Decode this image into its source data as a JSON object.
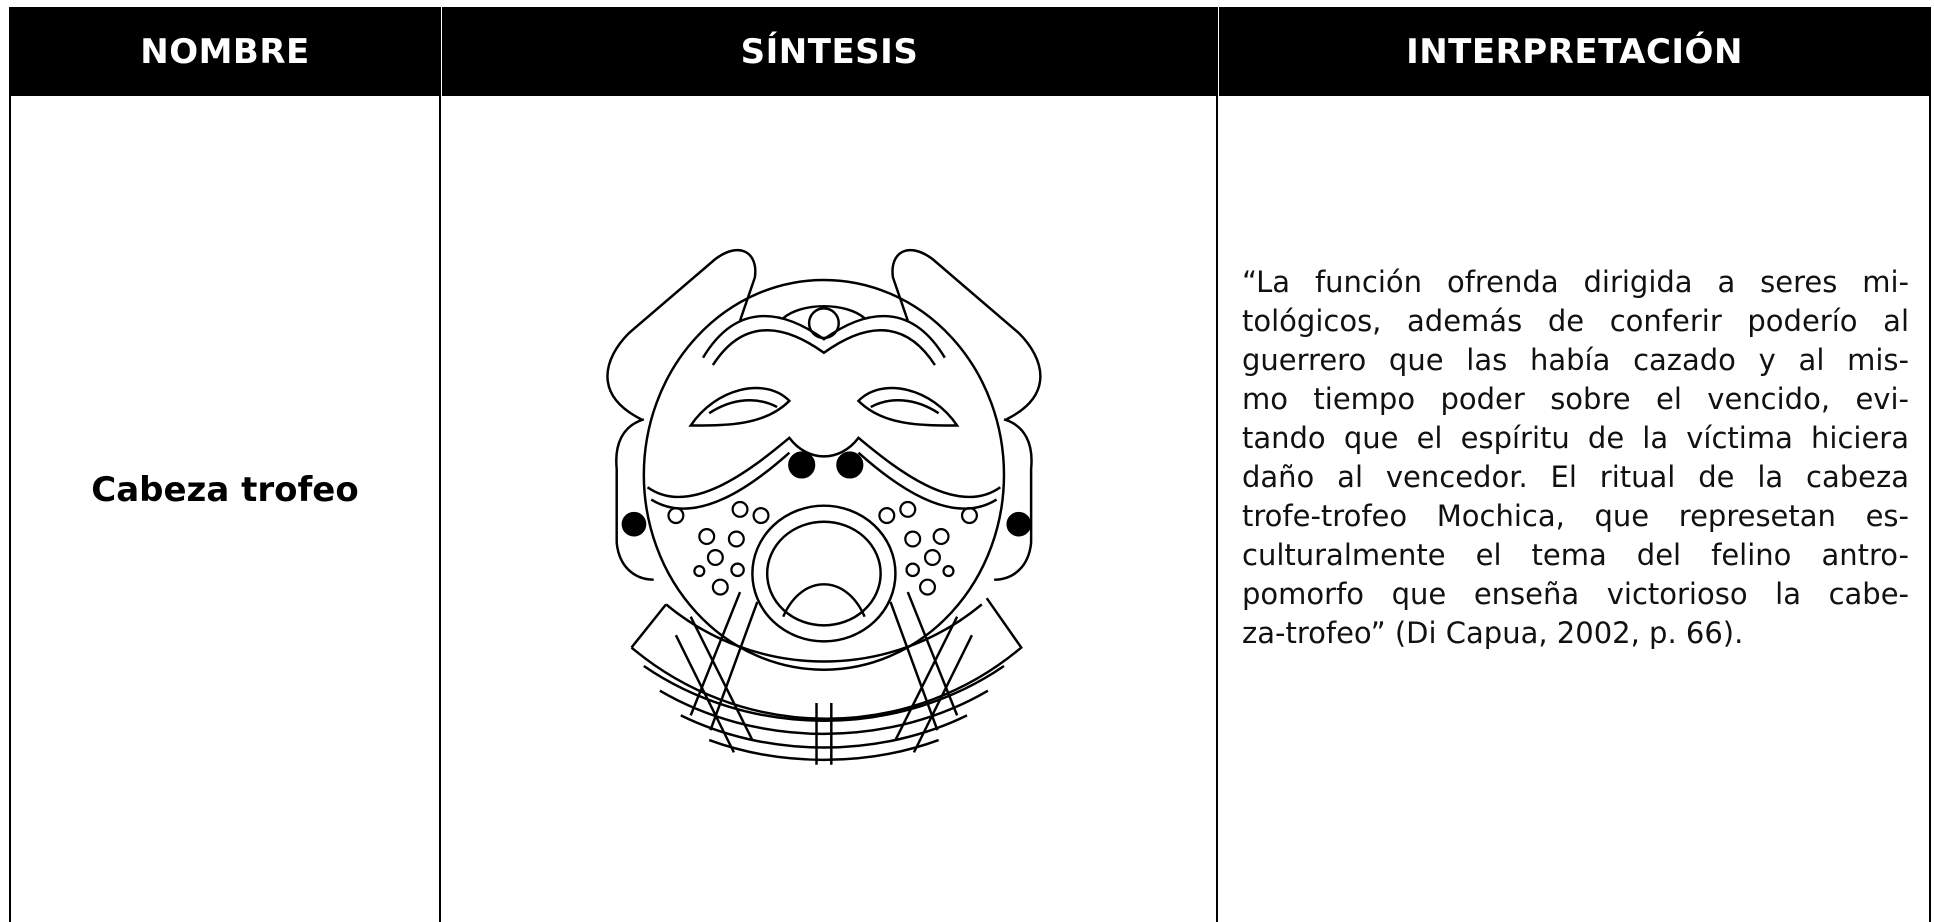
{
  "table": {
    "headers": [
      "NOMBRE",
      "SÍNTESIS",
      "INTERPRETACIÓN"
    ],
    "rows": [
      {
        "name": "Cabeza trofeo",
        "interpretation_lines": [
          "“La función ofrenda dirigida a seres mi-",
          "tológicos, además de conferir poderío al",
          "guerrero que las había cazado y al mis-",
          "mo tiempo poder sobre el vencido, evi-",
          "tando que el espíritu de la víctima hiciera",
          "daño al vencedor. El ritual de la cabeza",
          "trofe-trofeo Mochica, que represetan es-",
          "culturalmente el tema del felino antro-",
          "pomorfo que enseña victorioso la cabe-",
          "za-trofeo” (Di Capua, 2002, p. 66)."
        ]
      }
    ]
  }
}
